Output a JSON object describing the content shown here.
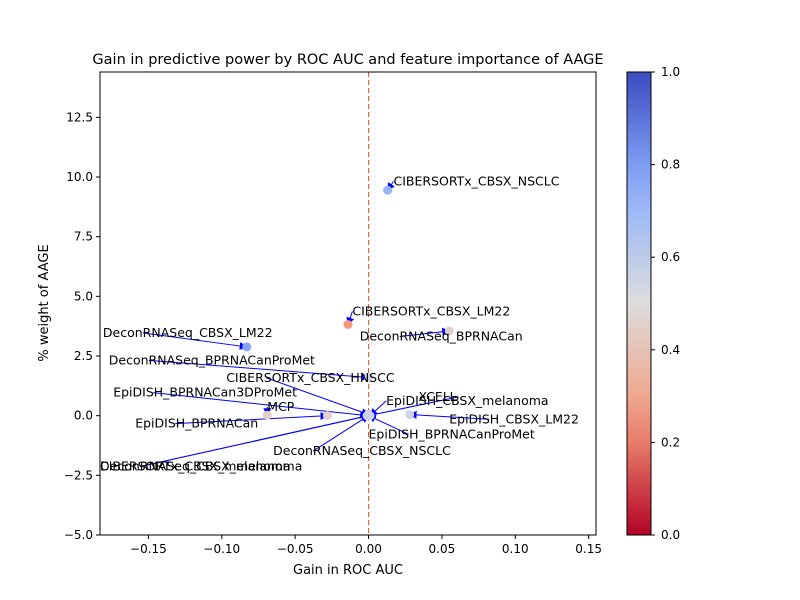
{
  "chart_data": {
    "type": "scatter",
    "title": "Gain in predictive power by ROC AUC and feature importance of AAGE",
    "xlabel": "Gain in ROC AUC",
    "ylabel": "% weight of AAGE",
    "xlim": [
      -0.183,
      0.155
    ],
    "ylim": [
      -5.0,
      14.4
    ],
    "x_ticks": [
      -0.15,
      -0.1,
      -0.05,
      0.0,
      0.05,
      0.1,
      0.15
    ],
    "x_tick_labels": [
      "−0.15",
      "−0.10",
      "−0.05",
      "0.00",
      "0.05",
      "0.10",
      "0.15"
    ],
    "y_ticks": [
      -5.0,
      -2.5,
      0.0,
      2.5,
      5.0,
      7.5,
      10.0,
      12.5
    ],
    "y_tick_labels": [
      "−5.0",
      "−2.5",
      "0.0",
      "2.5",
      "5.0",
      "7.5",
      "10.0",
      "12.5"
    ],
    "reference_line_x": 0.0,
    "grid": false,
    "colorbar": {
      "colormap": "coolwarm_r",
      "min": 0.0,
      "max": 1.0,
      "ticks": [
        0.0,
        0.2,
        0.4,
        0.6,
        0.8,
        1.0
      ],
      "tick_labels": [
        "0.0",
        "0.2",
        "0.4",
        "0.6",
        "0.8",
        "1.0"
      ]
    },
    "points": [
      {
        "label": "CIBERSORTx_CBSX_NSCLC",
        "x": 0.013,
        "y": 9.45,
        "c": 0.72,
        "lx": 0.017,
        "ly": 9.65
      },
      {
        "label": "CIBERSORTx_CBSX_LM22",
        "x": -0.014,
        "y": 3.82,
        "c": 0.25,
        "lx": -0.011,
        "ly": 4.2
      },
      {
        "label": "DeconRNASeq_BPRNACan",
        "x": 0.055,
        "y": 3.55,
        "c": 0.45,
        "lx": -0.006,
        "ly": 3.15
      },
      {
        "label": "DeconRNASeq_CBSX_LM22",
        "x": -0.083,
        "y": 2.88,
        "c": 0.78,
        "lx": -0.181,
        "ly": 3.3
      },
      {
        "label": "DeconRNASeq_BPRNACanProMet",
        "x": 0.0,
        "y": 1.6,
        "c": 0.55,
        "lx": -0.177,
        "ly": 2.15
      },
      {
        "label": "CIBERSORTx_CBSX_HNSCC",
        "x": 0.0,
        "y": 0.05,
        "c": 0.55,
        "lx": -0.097,
        "ly": 1.42
      },
      {
        "label": "EpiDISH_BPRNACan3DProMet",
        "x": -0.001,
        "y": 0.0,
        "c": 0.55,
        "lx": -0.174,
        "ly": 0.8
      },
      {
        "label": "XCELL",
        "x": 0.0,
        "y": 0.0,
        "c": 0.55,
        "lx": 0.034,
        "ly": 0.62
      },
      {
        "label": "EpiDISH_CBSX_melanoma",
        "x": 0.001,
        "y": 0.0,
        "c": 0.55,
        "lx": 0.012,
        "ly": 0.45
      },
      {
        "label": "MCP",
        "x": -0.069,
        "y": 0.02,
        "c": 0.45,
        "lx": -0.069,
        "ly": 0.2
      },
      {
        "label": "EpiDISH_CBSX_LM22",
        "x": 0.028,
        "y": 0.05,
        "c": 0.55,
        "lx": 0.055,
        "ly": -0.32
      },
      {
        "label": "EpiDISH_BPRNACan",
        "x": -0.028,
        "y": 0.0,
        "c": 0.45,
        "lx": -0.159,
        "ly": -0.5
      },
      {
        "label": "EpiDISH_BPRNACanProMet",
        "x": 0.0,
        "y": 0.0,
        "c": 0.55,
        "lx": 0.0,
        "ly": -0.95
      },
      {
        "label": "DeconRNASeq_CBSX_NSCLC",
        "x": 0.0,
        "y": 0.0,
        "c": 0.55,
        "lx": -0.065,
        "ly": -1.65
      },
      {
        "label": "CIBERSORTx_CBSX_melanoma",
        "x": 0.0,
        "y": 0.0,
        "c": 0.55,
        "lx": -0.183,
        "ly": -2.3
      },
      {
        "label": "DeconRNASeq_CBSX_melanoma",
        "x": 0.0,
        "y": 0.0,
        "c": 0.55,
        "lx": -0.183,
        "ly": -2.3
      }
    ]
  }
}
